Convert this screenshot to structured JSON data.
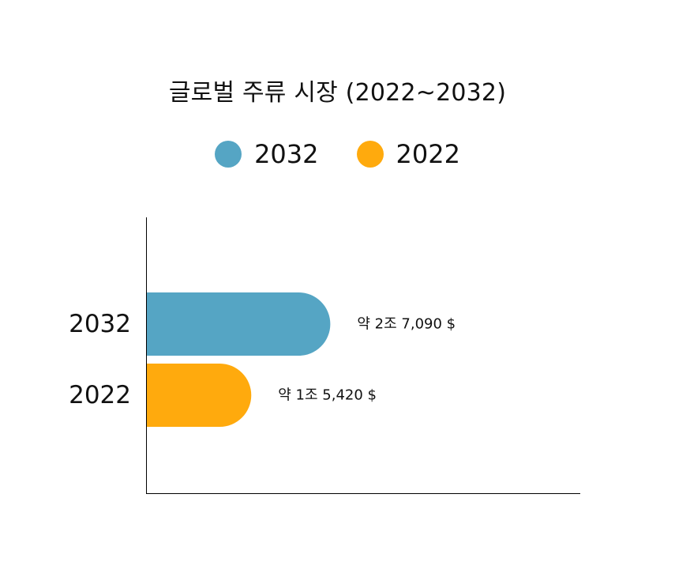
{
  "chart_data": {
    "type": "bar",
    "orientation": "horizontal",
    "title": "글로벌 주류 시장 (2022~2032)",
    "categories": [
      "2032",
      "2022"
    ],
    "values": [
      2.709,
      1.542
    ],
    "value_labels": [
      "약 2조 7,090 $",
      "약 1조 5,420 $"
    ],
    "colors": [
      "#55A5C4",
      "#FFAA0D"
    ],
    "legend": [
      {
        "label": "2032",
        "color": "#55A5C4"
      },
      {
        "label": "2022",
        "color": "#FFAA0D"
      }
    ],
    "legend_position": "top",
    "xlim": [
      0,
      6.4
    ],
    "grid": false
  }
}
